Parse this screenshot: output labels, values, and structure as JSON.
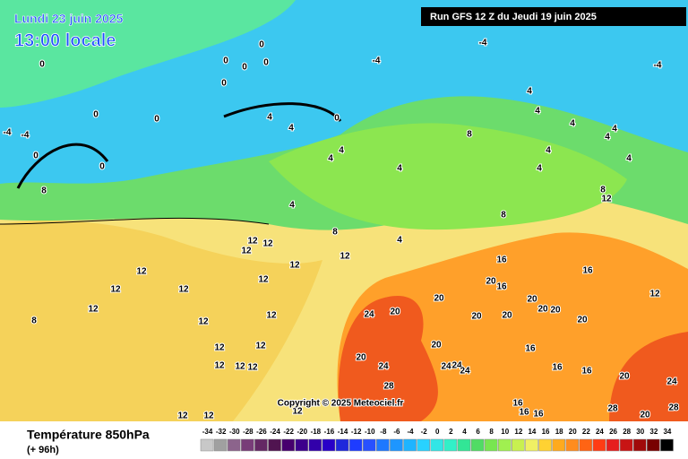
{
  "map": {
    "date": "Lundi 23 juin 2025",
    "time": "13:00 locale",
    "run": "Run GFS 12 Z du Jeudi 19 juin 2025",
    "copyright": "Copyright © 2025 Meteociel.fr",
    "contour_labels": [
      0,
      0,
      0,
      0,
      0,
      0,
      0,
      0,
      0,
      0,
      0,
      -4,
      -4,
      -4,
      -4,
      -4,
      4,
      4,
      4,
      4,
      4,
      4,
      4,
      4,
      4,
      4,
      4,
      4,
      4,
      4,
      4,
      8,
      8,
      8,
      8,
      8,
      8,
      12,
      12,
      12,
      12,
      12,
      12,
      12,
      12,
      12,
      12,
      12,
      12,
      12,
      12,
      12,
      12,
      12,
      12,
      12,
      12,
      12,
      12,
      16,
      16,
      16,
      16,
      16,
      16,
      16,
      16,
      16,
      20,
      20,
      20,
      20,
      20,
      20,
      20,
      20,
      20,
      20,
      20,
      20,
      20,
      24,
      24,
      24,
      24,
      24,
      24,
      28,
      28,
      28
    ]
  },
  "legend": {
    "title": "Température 850hPa",
    "subtitle": "(+ 96h)",
    "ticks": [
      -34,
      -32,
      -30,
      -28,
      -26,
      -24,
      -22,
      -20,
      -18,
      -16,
      -14,
      -12,
      -10,
      -8,
      -6,
      -4,
      -2,
      0,
      2,
      4,
      6,
      8,
      10,
      12,
      14,
      16,
      18,
      20,
      22,
      24,
      26,
      28,
      30,
      32,
      34
    ],
    "colors": [
      "#c8c8c8",
      "#a0a0a0",
      "#8c648c",
      "#783c78",
      "#642864",
      "#501450",
      "#46006e",
      "#3c008c",
      "#3200aa",
      "#2800c8",
      "#1e28dc",
      "#1e3cff",
      "#2850ff",
      "#1e78ff",
      "#1e96ff",
      "#1eb4ff",
      "#28d2ff",
      "#32e6e6",
      "#32f0c8",
      "#32e696",
      "#50dc64",
      "#78e650",
      "#a0f050",
      "#c8f050",
      "#f0f064",
      "#ffd232",
      "#ffaa1e",
      "#ff8c1e",
      "#ff6414",
      "#ff3c14",
      "#e61e1e",
      "#c81414",
      "#a00a0a",
      "#780000",
      "#000000"
    ]
  }
}
